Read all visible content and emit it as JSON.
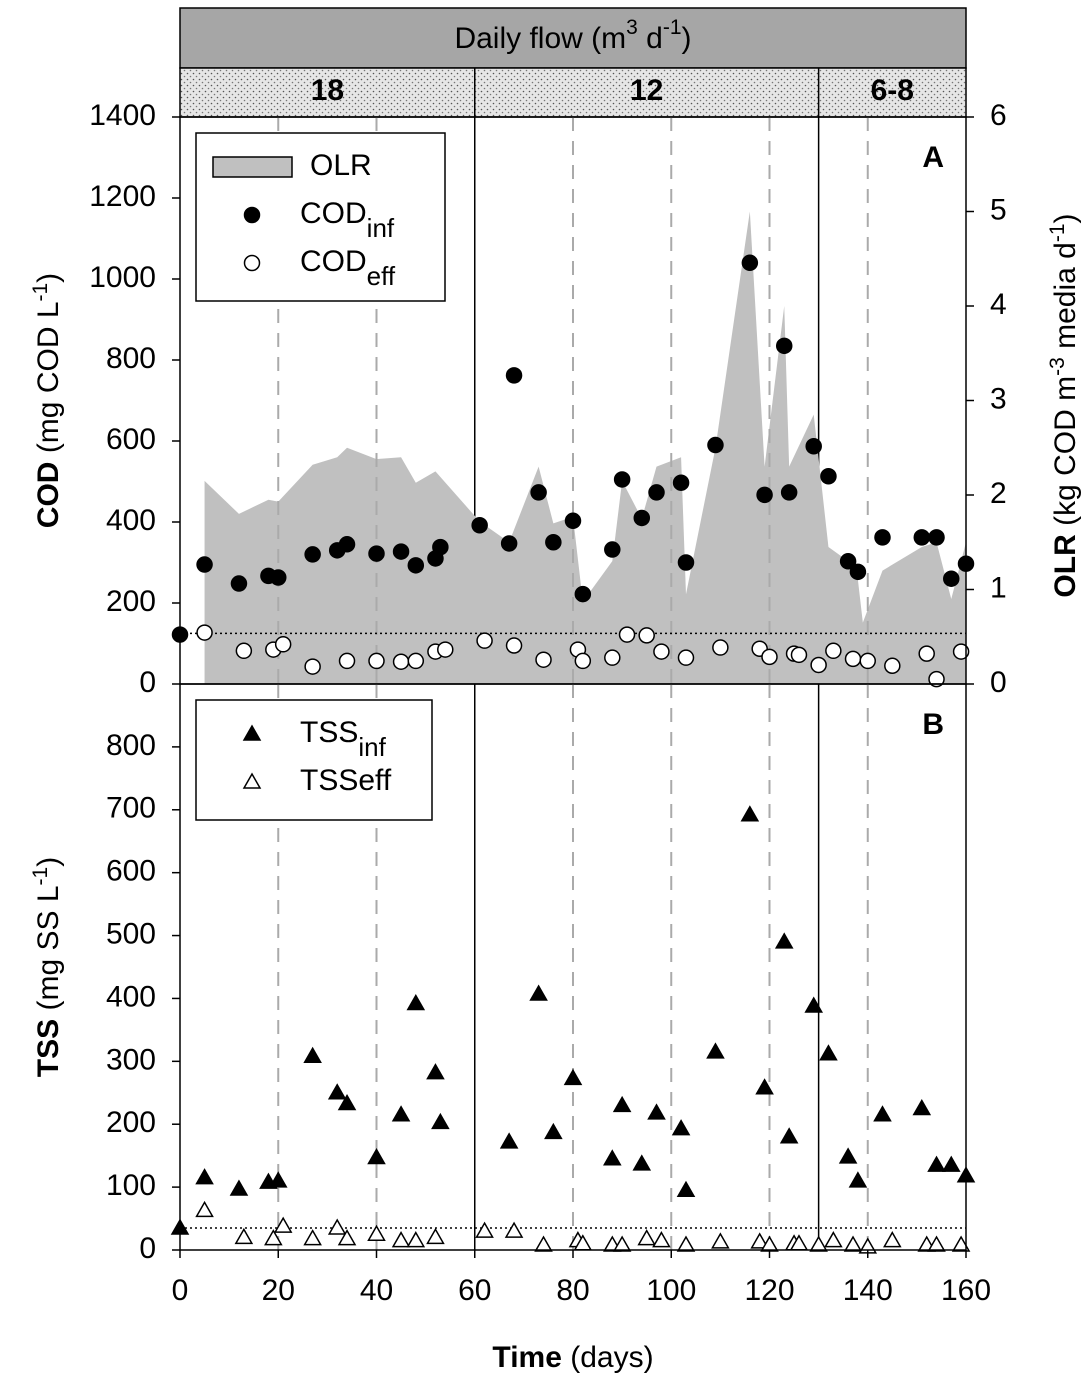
{
  "header": {
    "title": [
      {
        "t": "Daily flow (m"
      },
      {
        "t": "3",
        "sup": true
      },
      {
        "t": " d"
      },
      {
        "t": "-1",
        "sup": true
      },
      {
        "t": ")"
      }
    ],
    "periods": [
      {
        "label": "18",
        "start": 0,
        "end": 60
      },
      {
        "label": "12",
        "start": 60,
        "end": 130
      },
      {
        "label": "6-8",
        "start": 130,
        "end": 160
      }
    ],
    "dashed_x": [
      20,
      40,
      80,
      100,
      120,
      140
    ]
  },
  "chart_data": [
    {
      "type": "scatter",
      "panel_label": "A",
      "legend": "upper left",
      "xlim": [
        0,
        160
      ],
      "ylim": [
        0,
        1400
      ],
      "yticks": [
        0,
        200,
        400,
        600,
        800,
        1000,
        1200,
        1400
      ],
      "y2lim": [
        0,
        6
      ],
      "y2ticks": [
        0,
        1,
        2,
        3,
        4,
        5,
        6
      ],
      "ylabel": [
        {
          "t": "COD",
          "b": true
        },
        {
          "t": " (mg COD L"
        },
        {
          "t": "-1",
          "sup": true
        },
        {
          "t": ")"
        }
      ],
      "y2label": [
        {
          "t": "OLR",
          "b": true
        },
        {
          "t": " (kg COD m"
        },
        {
          "t": "-3",
          "sup": true
        },
        {
          "t": " media d"
        },
        {
          "t": "-1",
          "sup": true
        },
        {
          "t": ")"
        }
      ],
      "ref_line": 125,
      "series": [
        {
          "name": "OLR",
          "kind": "area",
          "axis": "y2",
          "color": "#c0c0c0",
          "x": [
            5,
            12,
            18,
            20,
            27,
            32,
            34,
            40,
            45,
            48,
            52,
            61,
            67,
            73,
            76,
            80,
            82,
            88,
            90,
            94,
            97,
            102,
            103,
            109,
            116,
            119,
            123,
            124,
            129,
            132,
            136,
            138,
            139,
            143,
            151,
            154,
            157,
            160
          ],
          "values": [
            2.15,
            1.8,
            1.95,
            1.93,
            2.32,
            2.4,
            2.5,
            2.38,
            2.4,
            2.13,
            2.25,
            1.72,
            1.5,
            2.3,
            1.7,
            1.77,
            0.87,
            1.3,
            2.15,
            1.75,
            2.3,
            2.4,
            0.95,
            2.5,
            5.0,
            2.3,
            4.0,
            2.3,
            2.85,
            1.45,
            1.3,
            1.1,
            0.65,
            1.2,
            1.45,
            1.5,
            0.9,
            1.5
          ]
        },
        {
          "name": "COD",
          "name_sub": "inf",
          "kind": "circle",
          "color": "#000000",
          "x": [
            0,
            5,
            12,
            18,
            20,
            27,
            32,
            34,
            40,
            45,
            48,
            52,
            53,
            61,
            67,
            68,
            73,
            76,
            80,
            82,
            88,
            90,
            94,
            97,
            102,
            103,
            109,
            116,
            119,
            123,
            124,
            129,
            132,
            136,
            138,
            143,
            151,
            154,
            157,
            160
          ],
          "values": [
            122,
            295,
            248,
            267,
            263,
            320,
            330,
            345,
            322,
            327,
            293,
            310,
            338,
            392,
            347,
            762,
            473,
            350,
            403,
            222,
            332,
            505,
            410,
            473,
            497,
            300,
            590,
            1040,
            467,
            835,
            473,
            587,
            513,
            303,
            277,
            362,
            362,
            362,
            260,
            297
          ]
        },
        {
          "name": "COD",
          "name_sub": "eff",
          "kind": "circle",
          "color": "#ffffff",
          "x": [
            5,
            13,
            19,
            21,
            27,
            34,
            40,
            45,
            48,
            52,
            54,
            62,
            68,
            74,
            81,
            82,
            88,
            91,
            95,
            98,
            103,
            110,
            118,
            120,
            125,
            126,
            130,
            133,
            137,
            140,
            145,
            152,
            154,
            159
          ],
          "values": [
            127,
            82,
            85,
            98,
            43,
            57,
            57,
            55,
            57,
            80,
            85,
            107,
            95,
            60,
            85,
            57,
            65,
            122,
            120,
            80,
            65,
            90,
            87,
            67,
            75,
            72,
            47,
            82,
            62,
            57,
            45,
            75,
            12,
            80
          ]
        }
      ]
    },
    {
      "type": "scatter",
      "panel_label": "B",
      "legend": "upper left",
      "xlim": [
        0,
        160
      ],
      "xticks": [
        0,
        20,
        40,
        60,
        80,
        100,
        120,
        140,
        160
      ],
      "ylim": [
        0,
        900
      ],
      "yticks": [
        0,
        100,
        200,
        300,
        400,
        500,
        600,
        700,
        800
      ],
      "xlabel": [
        {
          "t": "Time",
          "b": true
        },
        {
          "t": " (days)"
        }
      ],
      "ylabel": [
        {
          "t": "TSS",
          "b": true
        },
        {
          "t": " (mg SS L"
        },
        {
          "t": "-1",
          "sup": true
        },
        {
          "t": ")"
        }
      ],
      "ref_line": 35,
      "series": [
        {
          "name": "TSS",
          "name_sub": "inf",
          "kind": "triangle",
          "color": "#000000",
          "x": [
            0,
            5,
            12,
            18,
            20,
            27,
            32,
            34,
            40,
            45,
            48,
            52,
            53,
            67,
            73,
            76,
            80,
            88,
            90,
            94,
            97,
            102,
            103,
            109,
            116,
            119,
            123,
            124,
            129,
            132,
            136,
            138,
            143,
            151,
            154,
            157,
            160
          ],
          "values": [
            35,
            115,
            97,
            108,
            110,
            308,
            250,
            233,
            147,
            215,
            392,
            282,
            203,
            172,
            407,
            187,
            273,
            145,
            230,
            137,
            218,
            193,
            95,
            315,
            692,
            258,
            490,
            180,
            388,
            312,
            148,
            110,
            215,
            225,
            135,
            135,
            118
          ]
        },
        {
          "name": "TSSeff",
          "kind": "triangle",
          "color": "#ffffff",
          "x": [
            5,
            13,
            19,
            21,
            27,
            32,
            34,
            40,
            45,
            48,
            52,
            62,
            68,
            74,
            81,
            82,
            88,
            90,
            95,
            98,
            103,
            110,
            118,
            120,
            125,
            126,
            130,
            133,
            137,
            140,
            145,
            152,
            154,
            159
          ],
          "values": [
            63,
            20,
            18,
            38,
            18,
            35,
            18,
            25,
            15,
            15,
            20,
            30,
            30,
            8,
            15,
            10,
            8,
            8,
            18,
            15,
            8,
            13,
            13,
            8,
            10,
            10,
            8,
            15,
            8,
            5,
            15,
            8,
            8,
            8
          ]
        }
      ]
    }
  ]
}
